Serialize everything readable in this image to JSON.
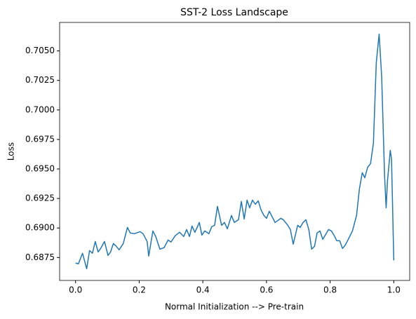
{
  "chart_data": {
    "type": "line",
    "title": "SST-2 Loss Landscape",
    "xlabel": "Normal Initialization --> Pre-train",
    "ylabel": "Loss",
    "xlim": [
      -0.05,
      1.05
    ],
    "ylim": [
      0.68556,
      0.70741
    ],
    "xticks": [
      {
        "value": 0,
        "label": "0.0"
      },
      0.2,
      0.4,
      0.6,
      0.8,
      {
        "value": 1,
        "label": "1.0"
      }
    ],
    "yticks": [
      0.6875,
      {
        "value": 0.69,
        "label": "0.6900"
      },
      0.6925,
      {
        "value": 0.695,
        "label": "0.6950"
      },
      0.6975,
      {
        "value": 0.7,
        "label": "0.7000"
      },
      0.7025,
      {
        "value": 0.705,
        "label": "0.7050"
      }
    ],
    "x": [
      0,
      0.009,
      0.022,
      0.035,
      0.044,
      0.053,
      0.062,
      0.071,
      0.079,
      0.091,
      0.102,
      0.11,
      0.119,
      0.128,
      0.137,
      0.15,
      0.163,
      0.172,
      0.185,
      0.203,
      0.212,
      0.225,
      0.23,
      0.243,
      0.252,
      0.265,
      0.278,
      0.291,
      0.3,
      0.313,
      0.327,
      0.34,
      0.349,
      0.358,
      0.366,
      0.375,
      0.389,
      0.397,
      0.406,
      0.419,
      0.428,
      0.437,
      0.446,
      0.459,
      0.468,
      0.477,
      0.49,
      0.499,
      0.512,
      0.521,
      0.53,
      0.539,
      0.547,
      0.556,
      0.565,
      0.574,
      0.583,
      0.592,
      0.6,
      0.609,
      0.618,
      0.627,
      0.636,
      0.645,
      0.653,
      0.667,
      0.675,
      0.684,
      0.698,
      0.706,
      0.715,
      0.724,
      0.733,
      0.742,
      0.751,
      0.759,
      0.768,
      0.777,
      0.786,
      0.795,
      0.804,
      0.812,
      0.821,
      0.83,
      0.839,
      0.848,
      0.857,
      0.87,
      0.883,
      0.892,
      0.901,
      0.909,
      0.918,
      0.927,
      0.936,
      0.945,
      0.954,
      0.962,
      0.971,
      0.976,
      0.98,
      0.989,
      0.993,
      1.0
    ],
    "series": [
      {
        "name": "loss",
        "color": "#1f77b4",
        "values": [
          0.68703,
          0.68697,
          0.68786,
          0.68655,
          0.68809,
          0.68786,
          0.68886,
          0.68797,
          0.68827,
          0.68886,
          0.68768,
          0.68797,
          0.68869,
          0.68845,
          0.68815,
          0.68869,
          0.69005,
          0.68958,
          0.68952,
          0.68969,
          0.68952,
          0.68886,
          0.68762,
          0.68975,
          0.68928,
          0.68821,
          0.68833,
          0.68898,
          0.68881,
          0.68934,
          0.68964,
          0.68928,
          0.68987,
          0.68928,
          0.69017,
          0.68964,
          0.69047,
          0.6894,
          0.68975,
          0.68952,
          0.69011,
          0.69023,
          0.69183,
          0.69023,
          0.69047,
          0.68993,
          0.69106,
          0.69047,
          0.6907,
          0.69225,
          0.69076,
          0.69236,
          0.69171,
          0.69236,
          0.69201,
          0.6923,
          0.69153,
          0.69106,
          0.69082,
          0.69142,
          0.69094,
          0.69047,
          0.69064,
          0.69082,
          0.6907,
          0.69023,
          0.68987,
          0.68863,
          0.69023,
          0.69005,
          0.69047,
          0.6907,
          0.68987,
          0.68821,
          0.68845,
          0.68958,
          0.68975,
          0.68904,
          0.68946,
          0.68987,
          0.68975,
          0.6894,
          0.68892,
          0.68892,
          0.68827,
          0.68857,
          0.68904,
          0.68975,
          0.69106,
          0.69331,
          0.69468,
          0.69426,
          0.69515,
          0.69545,
          0.69717,
          0.70399,
          0.70642,
          0.7028,
          0.6945,
          0.69171,
          0.69391,
          0.69658,
          0.6958,
          0.68726
        ]
      }
    ]
  }
}
